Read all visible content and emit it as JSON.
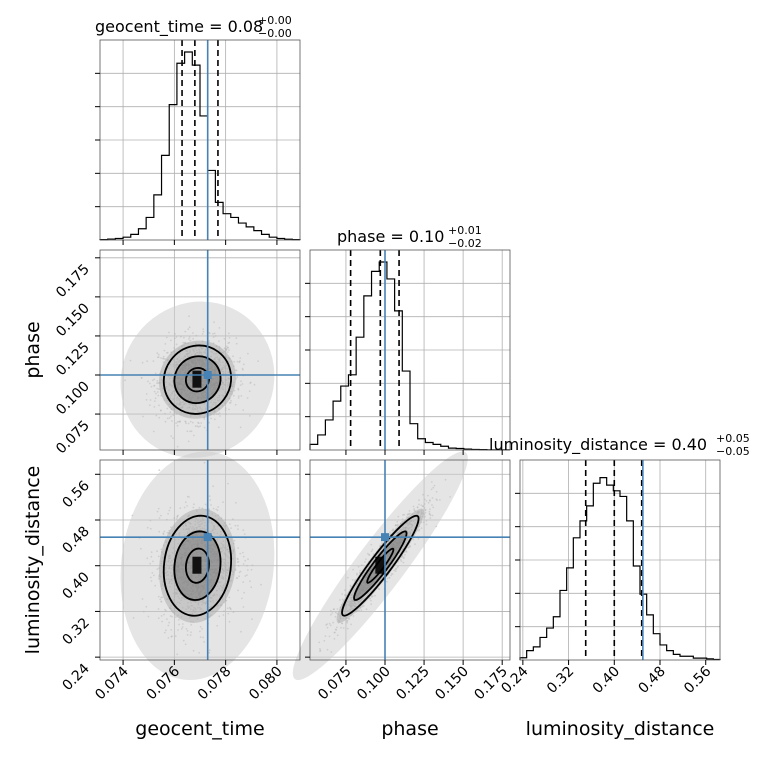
{
  "chart_data": {
    "type": "corner",
    "parameters": [
      "geocent_time",
      "phase",
      "luminosity_distance"
    ],
    "truths": {
      "geocent_time": 0.0773,
      "phase": 0.1,
      "luminosity_distance": 0.45
    },
    "titles": [
      {
        "param": "geocent_time",
        "prefix": "geocent_time = ",
        "value": "0.08",
        "plus": "+0.00",
        "minus": "−0.00"
      },
      {
        "param": "phase",
        "prefix": "phase = ",
        "value": "0.10",
        "plus": "+0.01",
        "minus": "−0.02"
      },
      {
        "param": "luminosity_distance",
        "prefix": "luminosity_distance = ",
        "value": "0.40",
        "plus": "+0.05",
        "minus": "−0.05"
      }
    ],
    "axis_labels": {
      "geocent_time": "geocent_time",
      "phase": "phase",
      "luminosity_distance": "luminosity_distance"
    },
    "ranges": {
      "geocent_time": [
        0.0731,
        0.0809
      ],
      "phase": [
        0.052,
        0.18
      ],
      "luminosity_distance": [
        0.235,
        0.585
      ]
    },
    "ticks": {
      "geocent_time": [
        "0.074",
        "0.076",
        "0.078",
        "0.080"
      ],
      "phase": [
        "0.075",
        "0.100",
        "0.125",
        "0.150",
        "0.175"
      ],
      "luminosity_distance": [
        "0.24",
        "0.32",
        "0.40",
        "0.48",
        "0.56"
      ]
    },
    "quantiles": {
      "geocent_time": [
        0.0763,
        0.0768,
        0.0777
      ],
      "phase": [
        0.078,
        0.097,
        0.109
      ],
      "luminosity_distance": [
        0.35,
        0.4,
        0.448
      ]
    },
    "histograms": {
      "geocent_time": [
        0.002,
        0.005,
        0.008,
        0.015,
        0.03,
        0.06,
        0.12,
        0.24,
        0.45,
        0.72,
        0.94,
        1.0,
        0.93,
        0.66,
        0.37,
        0.2,
        0.14,
        0.12,
        0.09,
        0.07,
        0.05,
        0.03,
        0.015,
        0.008,
        0.004,
        0.002
      ],
      "phase": [
        0.03,
        0.08,
        0.16,
        0.26,
        0.34,
        0.4,
        0.6,
        0.82,
        0.95,
        1.0,
        0.91,
        0.74,
        0.42,
        0.14,
        0.06,
        0.04,
        0.03,
        0.02,
        0.01,
        0.008,
        0.005,
        0.003,
        0.002,
        0.001,
        0.001,
        0.001
      ],
      "luminosity_distance": [
        0.012,
        0.05,
        0.07,
        0.12,
        0.17,
        0.23,
        0.37,
        0.49,
        0.65,
        0.74,
        0.82,
        0.94,
        0.97,
        0.93,
        0.9,
        0.87,
        0.74,
        0.5,
        0.35,
        0.24,
        0.14,
        0.08,
        0.05,
        0.03,
        0.02,
        0.02,
        0.01,
        0.01,
        0.006,
        0.003
      ]
    },
    "grid": true,
    "colors": {
      "truth": "#4682b4",
      "line": "#000000",
      "points": "#9a9a9a",
      "grid": "#b0b0b0"
    }
  }
}
